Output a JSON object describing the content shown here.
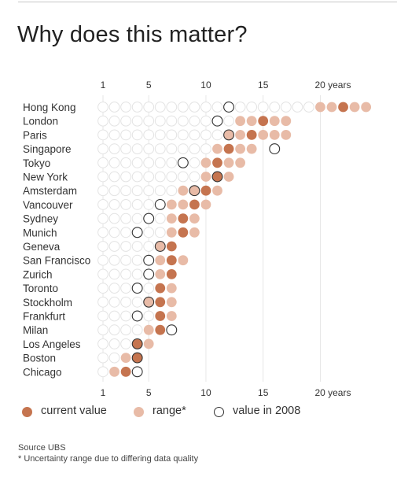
{
  "title": "Why does this matter?",
  "colors": {
    "current": "#c5744f",
    "range": "#e8bba7",
    "empty_stroke": "#e3e3e3",
    "ring_stroke": "#333333",
    "grid": "#e6e6e6",
    "text": "#333333"
  },
  "legend": {
    "current_label": "current value",
    "range_label": "range*",
    "past_label": "value in 2008"
  },
  "source": "Source UBS",
  "footnote": "* Uncertainty range due to differing data quality",
  "chart_data": {
    "type": "dot-strip",
    "title": "Why does this matter?",
    "x_ticks": [
      {
        "value": 1,
        "label": "1"
      },
      {
        "value": 5,
        "label": "5"
      },
      {
        "value": 10,
        "label": "10"
      },
      {
        "value": 15,
        "label": "15"
      },
      {
        "value": 20,
        "label": "20 years"
      }
    ],
    "xlim": [
      1,
      24
    ],
    "x_ticks_top_and_bottom": true,
    "grid": "vertical at ticks",
    "legend_position": "bottom-left",
    "rows": [
      {
        "city": "Hong Kong",
        "current": 22,
        "range": [
          20,
          24
        ],
        "value_2008": 12
      },
      {
        "city": "London",
        "current": 15,
        "range": [
          13,
          17
        ],
        "value_2008": 11
      },
      {
        "city": "Paris",
        "current": 14,
        "range": [
          12,
          17
        ],
        "value_2008": 12
      },
      {
        "city": "Singapore",
        "current": 12,
        "range": [
          11,
          14
        ],
        "value_2008": 16
      },
      {
        "city": "Tokyo",
        "current": 11,
        "range": [
          10,
          13
        ],
        "value_2008": 8
      },
      {
        "city": "New York",
        "current": 11,
        "range": [
          10,
          12
        ],
        "value_2008": 11
      },
      {
        "city": "Amsterdam",
        "current": 10,
        "range": [
          8,
          11
        ],
        "value_2008": 9
      },
      {
        "city": "Vancouver",
        "current": 9,
        "range": [
          7,
          10
        ],
        "value_2008": 6
      },
      {
        "city": "Sydney",
        "current": 8,
        "range": [
          7,
          9
        ],
        "value_2008": 5
      },
      {
        "city": "Munich",
        "current": 8,
        "range": [
          7,
          9
        ],
        "value_2008": 4
      },
      {
        "city": "Geneva",
        "current": 7,
        "range": [
          6,
          7
        ],
        "value_2008": 6
      },
      {
        "city": "San Francisco",
        "current": 7,
        "range": [
          6,
          8
        ],
        "value_2008": 5
      },
      {
        "city": "Zurich",
        "current": 7,
        "range": [
          6,
          7
        ],
        "value_2008": 5
      },
      {
        "city": "Toronto",
        "current": 6,
        "range": [
          6,
          7
        ],
        "value_2008": 4
      },
      {
        "city": "Stockholm",
        "current": 6,
        "range": [
          5,
          7
        ],
        "value_2008": 5
      },
      {
        "city": "Frankfurt",
        "current": 6,
        "range": [
          6,
          7
        ],
        "value_2008": 4
      },
      {
        "city": "Milan",
        "current": 6,
        "range": [
          5,
          6
        ],
        "value_2008": 7
      },
      {
        "city": "Los Angeles",
        "current": 4,
        "range": [
          4,
          5
        ],
        "value_2008": 4
      },
      {
        "city": "Boston",
        "current": 4,
        "range": [
          3,
          4
        ],
        "value_2008": 4
      },
      {
        "city": "Chicago",
        "current": 3,
        "range": [
          2,
          3
        ],
        "value_2008": 4
      }
    ]
  }
}
